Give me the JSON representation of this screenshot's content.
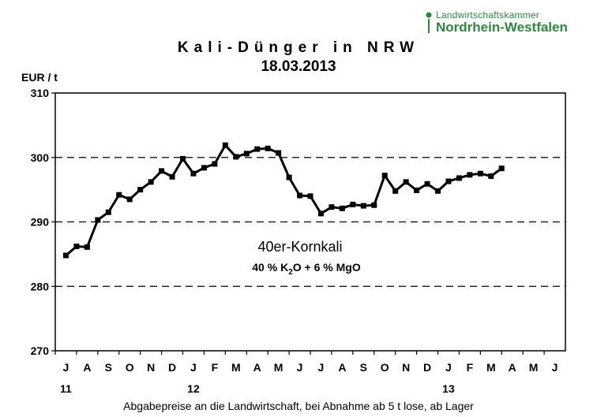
{
  "logo": {
    "line1": "Landwirtschaftskammer",
    "line2": "Nordrhein-Westfalen",
    "color": "#2a8a3a"
  },
  "chart_data": {
    "type": "line",
    "title": "Kali-Dünger in NRW",
    "subtitle": "18.03.2013",
    "ylabel": "EUR / t",
    "xlabel": "Abgabepreise an die Landwirtschaft, bei Abnahme ab 5 t lose, ab Lager",
    "ylim": [
      270,
      310
    ],
    "yticks": [
      270,
      280,
      290,
      300,
      310
    ],
    "grid": "dashed horizontal at 280, 290, 300",
    "months": [
      "J",
      "A",
      "S",
      "O",
      "N",
      "D",
      "J",
      "F",
      "M",
      "A",
      "M",
      "J",
      "J",
      "A",
      "S",
      "O",
      "N",
      "D",
      "J",
      "F",
      "M",
      "A",
      "M",
      "J"
    ],
    "years": [
      {
        "label": "11",
        "month_index": 0
      },
      {
        "label": "12",
        "month_index": 6
      },
      {
        "label": "13",
        "month_index": 18
      }
    ],
    "annotation": {
      "product": "40er-Kornkali",
      "formula_a": "40 %  K",
      "formula_sub": "2",
      "formula_b": "O + 6 % MgO"
    },
    "series": [
      {
        "color": "#000000",
        "points": [
          [
            0.0,
            284.8
          ],
          [
            0.5,
            286.2
          ],
          [
            1.0,
            286.1
          ],
          [
            1.5,
            290.3
          ],
          [
            2.0,
            291.5
          ],
          [
            2.5,
            294.2
          ],
          [
            3.0,
            293.5
          ],
          [
            3.5,
            295.0
          ],
          [
            4.0,
            296.2
          ],
          [
            4.5,
            297.9
          ],
          [
            5.0,
            297.0
          ],
          [
            5.5,
            299.8
          ],
          [
            6.0,
            297.5
          ],
          [
            6.5,
            298.4
          ],
          [
            7.0,
            299.0
          ],
          [
            7.5,
            301.9
          ],
          [
            8.0,
            300.1
          ],
          [
            8.5,
            300.6
          ],
          [
            9.0,
            301.3
          ],
          [
            9.5,
            301.4
          ],
          [
            10.0,
            300.7
          ],
          [
            10.5,
            296.9
          ],
          [
            11.0,
            294.1
          ],
          [
            11.5,
            294.0
          ],
          [
            12.0,
            291.3
          ],
          [
            12.5,
            292.3
          ],
          [
            13.0,
            292.1
          ],
          [
            13.5,
            292.7
          ],
          [
            14.0,
            292.5
          ],
          [
            14.5,
            292.6
          ],
          [
            15.0,
            297.2
          ],
          [
            15.5,
            294.8
          ],
          [
            16.0,
            296.2
          ],
          [
            16.5,
            294.9
          ],
          [
            17.0,
            295.9
          ],
          [
            17.5,
            294.8
          ],
          [
            18.0,
            296.3
          ],
          [
            18.5,
            296.8
          ],
          [
            19.0,
            297.3
          ],
          [
            19.5,
            297.5
          ],
          [
            20.0,
            297.1
          ],
          [
            20.5,
            298.3
          ]
        ]
      }
    ]
  }
}
